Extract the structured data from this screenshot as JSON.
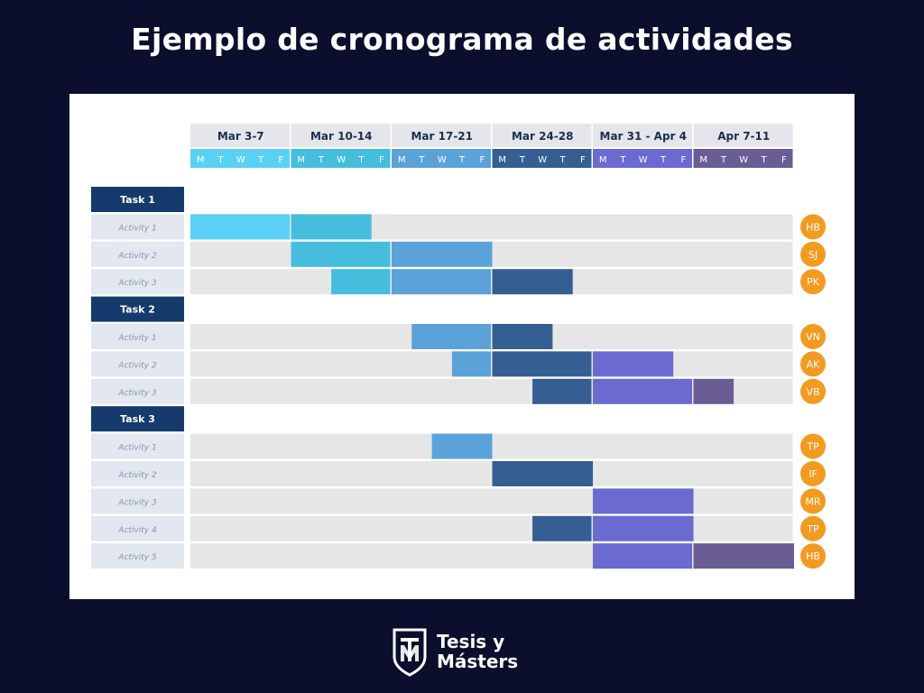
{
  "page": {
    "title": "Ejemplo de cronograma de actividades"
  },
  "brand": {
    "line1": "Tesis y",
    "line2": "Másters"
  },
  "chart_data": {
    "type": "gantt",
    "title": "Ejemplo de cronograma de actividades",
    "weeks": [
      {
        "label": "Mar 3-7",
        "color": "#5ad0f4"
      },
      {
        "label": "Mar 10-14",
        "color": "#45bede"
      },
      {
        "label": "Mar 17-21",
        "color": "#5ba2d8"
      },
      {
        "label": "Mar 24-28",
        "color": "#355f92"
      },
      {
        "label": "Mar 31 - Apr 4",
        "color": "#6a6ad0"
      },
      {
        "label": "Apr 7-11",
        "color": "#6a5d96"
      }
    ],
    "days": [
      "M",
      "T",
      "W",
      "T",
      "F"
    ],
    "tasks": [
      {
        "name": "Task 1",
        "activities": [
          {
            "name": "Activity 1",
            "start": 0,
            "end": 9,
            "initials": "HB"
          },
          {
            "name": "Activity 2",
            "start": 5,
            "end": 15,
            "initials": "SJ"
          },
          {
            "name": "Activity 3",
            "start": 7,
            "end": 19,
            "initials": "PK"
          }
        ]
      },
      {
        "name": "Task 2",
        "activities": [
          {
            "name": "Activity 1",
            "start": 11,
            "end": 18,
            "initials": "VN"
          },
          {
            "name": "Activity 2",
            "start": 13,
            "end": 24,
            "initials": "AK"
          },
          {
            "name": "Activity 3",
            "start": 17,
            "end": 27,
            "initials": "VB"
          }
        ]
      },
      {
        "name": "Task 3",
        "activities": [
          {
            "name": "Activity 1",
            "start": 12,
            "end": 15,
            "initials": "TP"
          },
          {
            "name": "Activity 2",
            "start": 15,
            "end": 20,
            "initials": "IF"
          },
          {
            "name": "Activity 3",
            "start": 20,
            "end": 25,
            "initials": "MR"
          },
          {
            "name": "Activity 4",
            "start": 17,
            "end": 25,
            "initials": "TP"
          },
          {
            "name": "Activity 5",
            "start": 20,
            "end": 30,
            "initials": "HB"
          }
        ]
      }
    ]
  },
  "colors": {
    "background": "#0b0e2c",
    "task_header": "#153a6b",
    "week_header": "#e4e6eb",
    "row_bg": "#e6e6e6",
    "label_bg": "#e2e7f0",
    "avatar": "#f39a21"
  }
}
